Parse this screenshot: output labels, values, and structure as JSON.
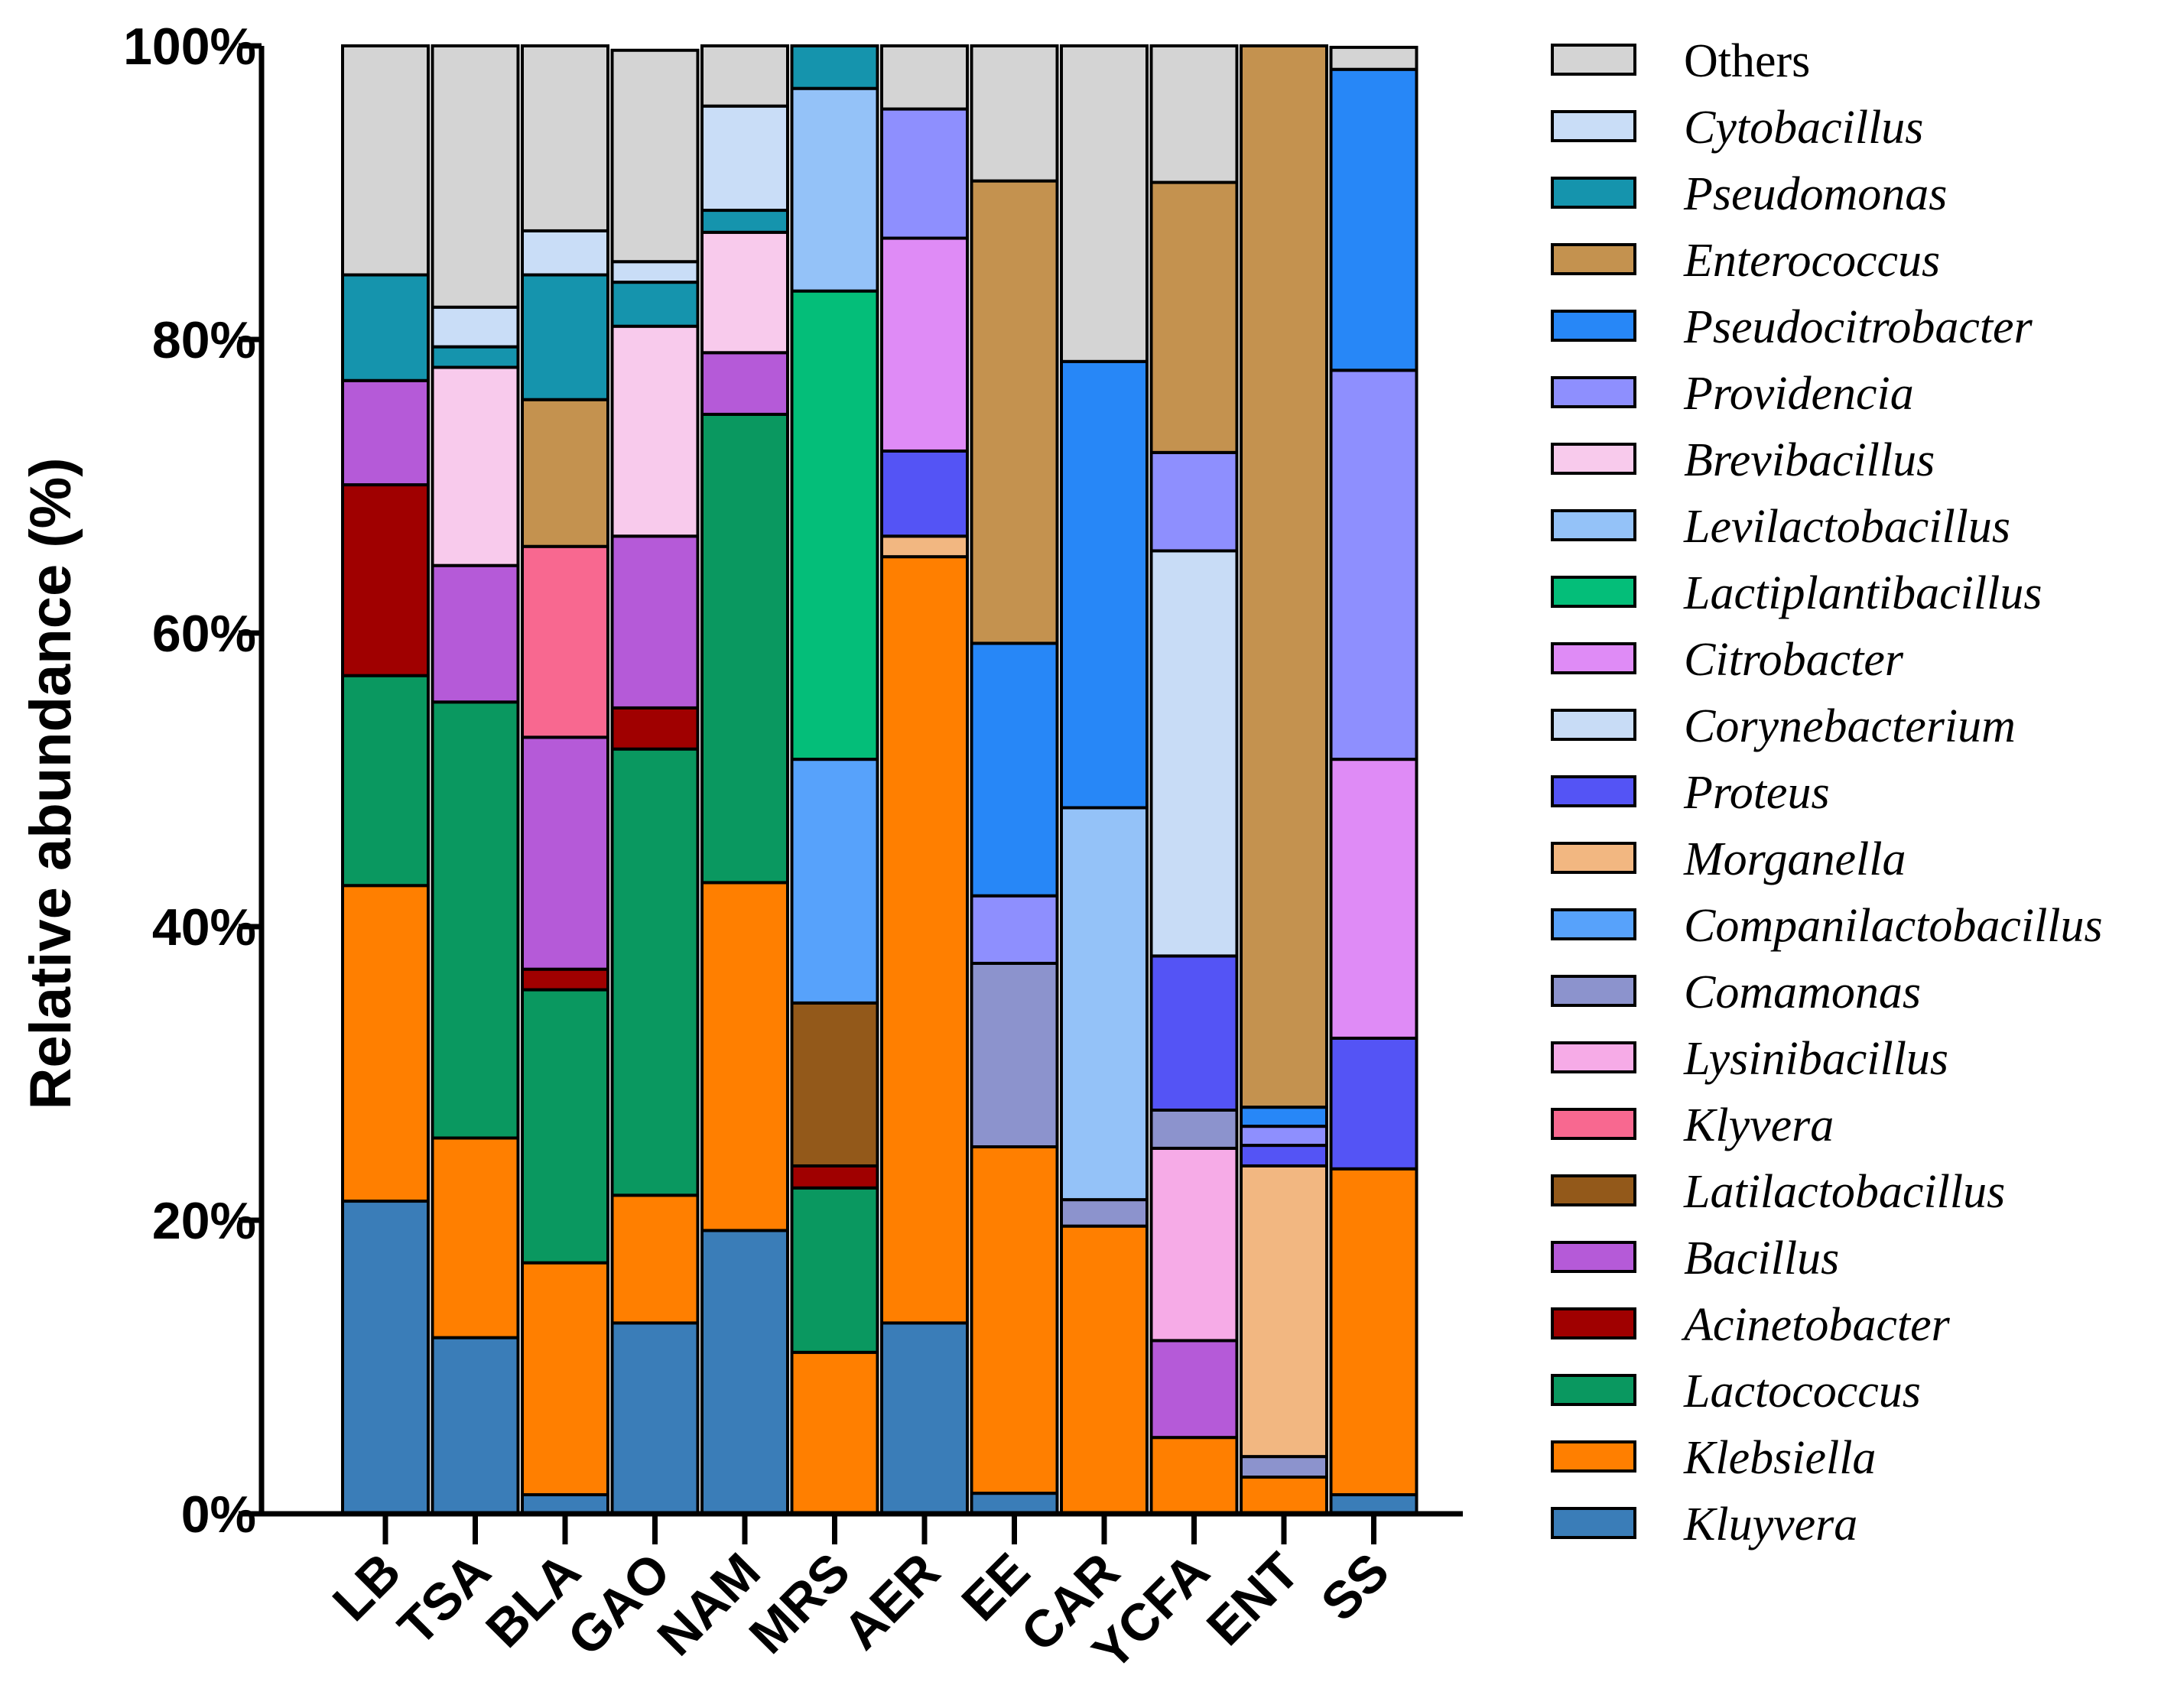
{
  "chart_data": {
    "type": "bar",
    "stacked": true,
    "ylabel": "Relative abundance (%)",
    "xlabel": "",
    "ylim": [
      0,
      100
    ],
    "y_ticks": [
      "0%",
      "20%",
      "40%",
      "60%",
      "80%",
      "100%"
    ],
    "categories": [
      "LB",
      "TSA",
      "BLA",
      "GAO",
      "NAM",
      "MRS",
      "AER",
      "EE",
      "CAR",
      "YCFA",
      "ENT",
      "SS"
    ],
    "series": [
      {
        "name": "Kluyvera",
        "color": "#3a7db8",
        "italic": true,
        "values": [
          21.3,
          12.0,
          1.3,
          13.0,
          19.3,
          0,
          13.0,
          1.4,
          0,
          0,
          0,
          1.3
        ]
      },
      {
        "name": "Klebsiella",
        "color": "#ff7f00",
        "italic": true,
        "values": [
          21.5,
          13.6,
          15.8,
          8.7,
          23.7,
          11.0,
          52.2,
          23.6,
          19.6,
          5.2,
          2.5,
          22.2
        ]
      },
      {
        "name": "Lactococcus",
        "color": "#0a9860",
        "italic": true,
        "values": [
          14.3,
          29.7,
          18.6,
          30.4,
          31.9,
          11.2,
          0,
          0,
          0,
          0,
          0,
          0
        ]
      },
      {
        "name": "Acinetobacter",
        "color": "#a00000",
        "italic": true,
        "values": [
          13.0,
          0,
          1.4,
          2.8,
          0,
          1.5,
          0,
          0,
          0,
          0,
          0,
          0
        ]
      },
      {
        "name": "Bacillus",
        "color": "#b55ad8",
        "italic": true,
        "values": [
          7.1,
          9.3,
          15.8,
          11.7,
          4.2,
          0,
          0,
          0,
          0,
          6.6,
          0,
          0
        ]
      },
      {
        "name": "Latilactobacillus",
        "color": "#93591a",
        "italic": true,
        "values": [
          0,
          0,
          0,
          0,
          0,
          11.1,
          0,
          0,
          0,
          0,
          0,
          0
        ]
      },
      {
        "name": "Klyvera",
        "color": "#f86890",
        "italic": true,
        "values": [
          0,
          0,
          13.0,
          0,
          0,
          0,
          0,
          0,
          0,
          0,
          0,
          0
        ]
      },
      {
        "name": "Lysinibacillus",
        "color": "#f6abe7",
        "italic": true,
        "values": [
          0,
          0,
          0,
          0,
          0,
          0,
          0,
          0,
          0,
          13.1,
          0,
          0
        ]
      },
      {
        "name": "Comamonas",
        "color": "#8c93cd",
        "italic": true,
        "values": [
          0,
          0,
          0,
          0,
          0,
          0,
          0,
          12.5,
          1.8,
          2.6,
          1.4,
          0
        ]
      },
      {
        "name": "Companilactobacillus",
        "color": "#57a2fb",
        "italic": true,
        "values": [
          0,
          0,
          0,
          0,
          0,
          16.6,
          0,
          0,
          0,
          0,
          0,
          0
        ]
      },
      {
        "name": "Morganella",
        "color": "#f2b781",
        "italic": true,
        "values": [
          0,
          0,
          0,
          0,
          0,
          0,
          1.4,
          0,
          0,
          0,
          19.8,
          0
        ]
      },
      {
        "name": "Proteus",
        "color": "#5454f5",
        "italic": true,
        "values": [
          0,
          0,
          0,
          0,
          0,
          0,
          5.8,
          0,
          0,
          10.5,
          1.4,
          8.9
        ]
      },
      {
        "name": "Corynebacterium",
        "color": "#c8dcf6",
        "italic": true,
        "values": [
          0,
          0,
          0,
          0,
          0,
          0,
          0,
          0,
          0,
          27.6,
          0,
          0
        ]
      },
      {
        "name": "Citrobacter",
        "color": "#df8bf6",
        "italic": true,
        "values": [
          0,
          0,
          0,
          0,
          0,
          0,
          14.5,
          0,
          0,
          0,
          0,
          19.0
        ]
      },
      {
        "name": "Lactiplantibacillus",
        "color": "#04be79",
        "italic": true,
        "values": [
          0,
          0,
          0,
          0,
          0,
          31.9,
          0,
          0,
          0,
          0,
          0,
          0
        ]
      },
      {
        "name": "Levilactobacillus",
        "color": "#94c2f8",
        "italic": true,
        "values": [
          0,
          0,
          0,
          0,
          0,
          13.8,
          0,
          0,
          26.7,
          0,
          0,
          0
        ]
      },
      {
        "name": "Brevibacillus",
        "color": "#f8caec",
        "italic": true,
        "values": [
          0,
          13.5,
          0,
          14.3,
          8.2,
          0,
          0,
          0,
          0,
          0,
          0,
          0
        ]
      },
      {
        "name": "Providencia",
        "color": "#8e8ffe",
        "italic": true,
        "values": [
          0,
          0,
          0,
          0,
          0,
          0,
          8.8,
          4.6,
          0,
          6.7,
          1.3,
          26.5
        ]
      },
      {
        "name": "Pseudocitrobacter",
        "color": "#2787f7",
        "italic": true,
        "values": [
          0,
          0,
          0,
          0,
          0,
          0,
          0,
          17.2,
          30.4,
          0,
          1.3,
          20.5
        ]
      },
      {
        "name": "Enterococcus",
        "color": "#c4924f",
        "italic": true,
        "values": [
          0,
          0,
          10.0,
          0,
          0,
          0,
          0,
          31.5,
          0,
          18.4,
          72.3,
          0
        ]
      },
      {
        "name": "Pseudomonas",
        "color": "#1594ad",
        "italic": true,
        "values": [
          7.2,
          1.4,
          8.5,
          3.0,
          1.5,
          2.9,
          0,
          0,
          0,
          0,
          0,
          0
        ]
      },
      {
        "name": "Cytobacillus",
        "color": "#c9ddf7",
        "italic": true,
        "values": [
          0,
          2.7,
          3.0,
          1.4,
          7.1,
          0,
          0,
          0,
          0,
          0,
          0,
          0
        ]
      },
      {
        "name": "Others",
        "color": "#d4d4d4",
        "italic": false,
        "values": [
          15.6,
          17.8,
          12.8,
          14.4,
          4.1,
          0,
          4.3,
          9.3,
          21.5,
          9.3,
          0,
          1.5
        ]
      }
    ]
  }
}
